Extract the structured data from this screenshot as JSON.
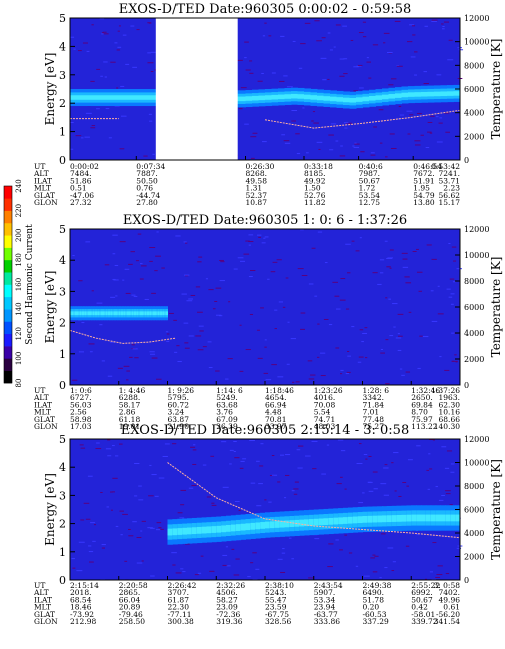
{
  "colorbar": {
    "label": "Second Harmonic Current",
    "ticks": [
      80,
      100,
      120,
      140,
      160,
      180,
      200,
      220,
      240
    ],
    "range": [
      80,
      240
    ],
    "colors": [
      "#000000",
      "#2a0040",
      "#3a00a8",
      "#1a1aff",
      "#0050ff",
      "#0096ff",
      "#00c8ff",
      "#00ffff",
      "#00e8a0",
      "#00d000",
      "#70ff00",
      "#ffff00",
      "#ffc000",
      "#ff8000",
      "#ff3000",
      "#ff0000"
    ]
  },
  "chart_data": [
    {
      "type": "heatmap",
      "title": "EXOS-D/TED    Date:960305   0:00:02 - 0:59:58",
      "ylabel": "Energy [eV]",
      "y2label": "Temperature [K]",
      "ylim": [
        0,
        5
      ],
      "y2lim": [
        0,
        12000
      ],
      "yticks": [
        0,
        1,
        2,
        3,
        4,
        5
      ],
      "y2ticks": [
        0,
        2000,
        4000,
        6000,
        8000,
        10000,
        12000
      ],
      "band": {
        "center": [
          2.2,
          2.2,
          2.2,
          2.15,
          2.25,
          2.1,
          2.3,
          2.35
        ],
        "width": 0.4
      },
      "temperature": [
        3500,
        3500,
        3400,
        3500,
        3400,
        2700,
        3100,
        3600,
        4200
      ],
      "gap": [
        0.22,
        0.43
      ],
      "table": {
        "labels": [
          "UT",
          "ALT",
          "ILAT",
          "MLT",
          "GLAT",
          "GLON"
        ],
        "columns": [
          [
            "0:00:02",
            "7484.",
            "51.86",
            "0.51",
            "-47.06",
            "27.32"
          ],
          [
            "0:07:34",
            "7887.",
            "50.50",
            "0.76",
            "-44.74",
            "27.80"
          ],
          [
            "0:26:30",
            "8268.",
            "49.58",
            "1.31",
            "52.37",
            "10.87"
          ],
          [
            "0:33:18",
            "8185.",
            "49.92",
            "1.50",
            "52.76",
            "11.82"
          ],
          [
            "0:40:6",
            "7987.",
            "50.67",
            "1.72",
            "53.54",
            "12.75"
          ],
          [
            "0:46:54",
            "7672.",
            "51.91",
            "1.95",
            "54.79",
            "13.80"
          ],
          [
            "0:53:42",
            "7241.",
            "53.71",
            "2.23",
            "56.62",
            "15.17"
          ]
        ]
      }
    },
    {
      "type": "heatmap",
      "title": "EXOS-D/TED    Date:960305   1: 0: 6 - 1:37:26",
      "ylabel": "Energy [eV]",
      "y2label": "Temperature [K]",
      "ylim": [
        0,
        5
      ],
      "y2lim": [
        0,
        12000
      ],
      "yticks": [
        0,
        1,
        2,
        3,
        4,
        5
      ],
      "y2ticks": [
        0,
        2000,
        4000,
        6000,
        8000,
        10000,
        12000
      ],
      "band": {
        "center": [
          2.3,
          2.3,
          2.3
        ],
        "width": 0.3,
        "extent": 0.25
      },
      "temperature": [
        4200,
        3600,
        3200,
        3300,
        3600
      ],
      "table": {
        "labels": [
          "UT",
          "ALT",
          "ILAT",
          "MLT",
          "GLAT",
          "GLON"
        ],
        "columns": [
          [
            "1: 0:6",
            "6727.",
            "56.03",
            "2.56",
            "58.98",
            "17.03"
          ],
          [
            "1: 4:46",
            "6288.",
            "58.17",
            "2.86",
            "61.18",
            "19.01"
          ],
          [
            "1: 9:26",
            "5795.",
            "60.72",
            "3.24",
            "63.87",
            "21.90"
          ],
          [
            "1:14: 6",
            "5249.",
            "63.68",
            "3.76",
            "67.09",
            "26.39"
          ],
          [
            "1:18:46",
            "4654.",
            "66.94",
            "4.48",
            "70.81",
            "33.97"
          ],
          [
            "1:23:26",
            "4016.",
            "70.08",
            "5.54",
            "74.71",
            "48.03"
          ],
          [
            "1:28: 6",
            "3342.",
            "71.84",
            "7.01",
            "77.48",
            "75.27"
          ],
          [
            "1:32:46",
            "2650.",
            "69.84",
            "8.70",
            "75.97",
            "113.22"
          ],
          [
            "1:37:26",
            "1963.",
            "62.30",
            "10.16",
            "68.66",
            "140.30"
          ]
        ]
      }
    },
    {
      "type": "heatmap",
      "title": "EXOS-D/TED    Date:960305   2:15:14 - 3: 0:58",
      "ylabel": "Energy [eV]",
      "y2label": "Temperature [K]",
      "ylim": [
        0,
        5
      ],
      "y2lim": [
        0,
        12000
      ],
      "yticks": [
        0,
        1,
        2,
        3,
        4,
        5
      ],
      "y2ticks": [
        0,
        2000,
        4000,
        6000,
        8000,
        10000,
        12000
      ],
      "band": {
        "center": [
          1.7,
          1.8,
          1.95,
          2.05,
          2.15,
          2.2,
          2.2
        ],
        "width": 0.6,
        "start": 0.25
      },
      "temperature": [
        10000,
        7000,
        5200,
        4600,
        4300,
        4000,
        3600
      ],
      "table": {
        "labels": [
          "UT",
          "ALT",
          "ILAT",
          "MLT",
          "GLAT",
          "GLON"
        ],
        "columns": [
          [
            "2:15:14",
            "2018.",
            "68.54",
            "18.46",
            "-73.92",
            "212.98"
          ],
          [
            "2:20:58",
            "2865.",
            "66.04",
            "20.89",
            "-79.46",
            "258.50"
          ],
          [
            "2:26:42",
            "3707.",
            "61.87",
            "22.30",
            "-77.11",
            "300.38"
          ],
          [
            "2:32:26",
            "4506.",
            "58.27",
            "23.09",
            "-72.36",
            "319.36"
          ],
          [
            "2:38:10",
            "5243.",
            "55.47",
            "23.59",
            "-67.75",
            "328.56"
          ],
          [
            "2:43:54",
            "5907.",
            "53.34",
            "23.94",
            "-63.77",
            "333.86"
          ],
          [
            "2:49:38",
            "6490.",
            "51.78",
            "0.20",
            "-60.53",
            "337.29"
          ],
          [
            "2:55:22",
            "6992.",
            "50.67",
            "0.42",
            "-58.01",
            "339.72"
          ],
          [
            "3: 0:58",
            "7402.",
            "49.96",
            "0.61",
            "-56.20",
            "341.54"
          ]
        ]
      }
    }
  ]
}
